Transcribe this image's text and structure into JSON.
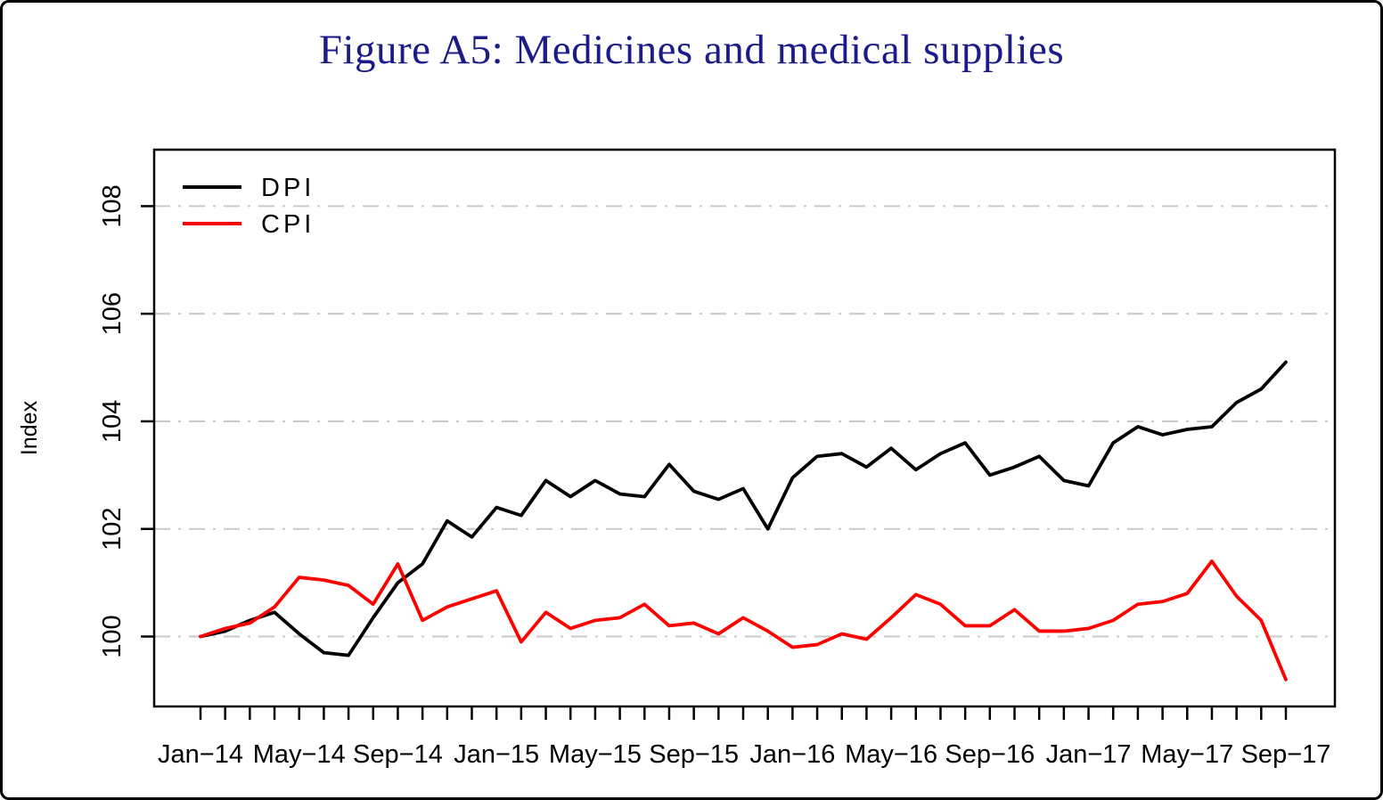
{
  "chart_data": {
    "type": "line",
    "title": "Figure A5: Medicines and medical supplies",
    "title_color": "#1b1b8a",
    "xlabel": "",
    "ylabel": "Index",
    "ylim": [
      98.7,
      109.05
    ],
    "y_ticks": [
      100,
      102,
      104,
      106,
      108
    ],
    "grid": true,
    "grid_color": "#c9c9c9",
    "legend_position": "top-left",
    "x_tick_every": 4,
    "x_tick_labels": [
      "Jan−14",
      "May−14",
      "Sep−14",
      "Jan−15",
      "May−15",
      "Sep−15",
      "Jan−16",
      "May−16",
      "Sep−16",
      "Jan−17",
      "May−17",
      "Sep−17"
    ],
    "x": [
      "Jan−14",
      "Feb−14",
      "Mar−14",
      "Apr−14",
      "May−14",
      "Jun−14",
      "Jul−14",
      "Aug−14",
      "Sep−14",
      "Oct−14",
      "Nov−14",
      "Dec−14",
      "Jan−15",
      "Feb−15",
      "Mar−15",
      "Apr−15",
      "May−15",
      "Jun−15",
      "Jul−15",
      "Aug−15",
      "Sep−15",
      "Oct−15",
      "Nov−15",
      "Dec−15",
      "Jan−16",
      "Feb−16",
      "Mar−16",
      "Apr−16",
      "May−16",
      "Jun−16",
      "Jul−16",
      "Aug−16",
      "Sep−16",
      "Oct−16",
      "Nov−16",
      "Dec−16",
      "Jan−17",
      "Feb−17",
      "Mar−17",
      "Apr−17",
      "May−17",
      "Jun−17",
      "Jul−17",
      "Aug−17",
      "Sep−17"
    ],
    "series": [
      {
        "name": "DPI",
        "color": "#000000",
        "values": [
          100.0,
          100.1,
          100.3,
          100.45,
          100.05,
          99.7,
          99.65,
          100.35,
          101.0,
          101.35,
          102.15,
          101.85,
          102.4,
          102.25,
          102.9,
          102.6,
          102.9,
          102.65,
          102.6,
          103.2,
          102.7,
          102.55,
          102.75,
          102.0,
          102.95,
          103.35,
          103.4,
          103.15,
          103.5,
          103.1,
          103.4,
          103.6,
          103.0,
          103.15,
          103.35,
          102.9,
          102.8,
          103.6,
          103.9,
          103.75,
          103.85,
          103.9,
          104.35,
          104.6,
          105.1
        ]
      },
      {
        "name": "CPI",
        "color": "#fe0000",
        "values": [
          100.0,
          100.15,
          100.25,
          100.55,
          101.1,
          101.05,
          100.95,
          100.6,
          101.35,
          100.3,
          100.55,
          100.7,
          100.85,
          99.9,
          100.45,
          100.15,
          100.3,
          100.35,
          100.6,
          100.2,
          100.25,
          100.05,
          100.35,
          100.1,
          99.8,
          99.85,
          100.05,
          99.95,
          100.35,
          100.78,
          100.6,
          100.2,
          100.2,
          100.5,
          100.1,
          100.1,
          100.15,
          100.3,
          100.6,
          100.65,
          100.8,
          101.4,
          100.75,
          100.3,
          99.2
        ]
      }
    ]
  }
}
